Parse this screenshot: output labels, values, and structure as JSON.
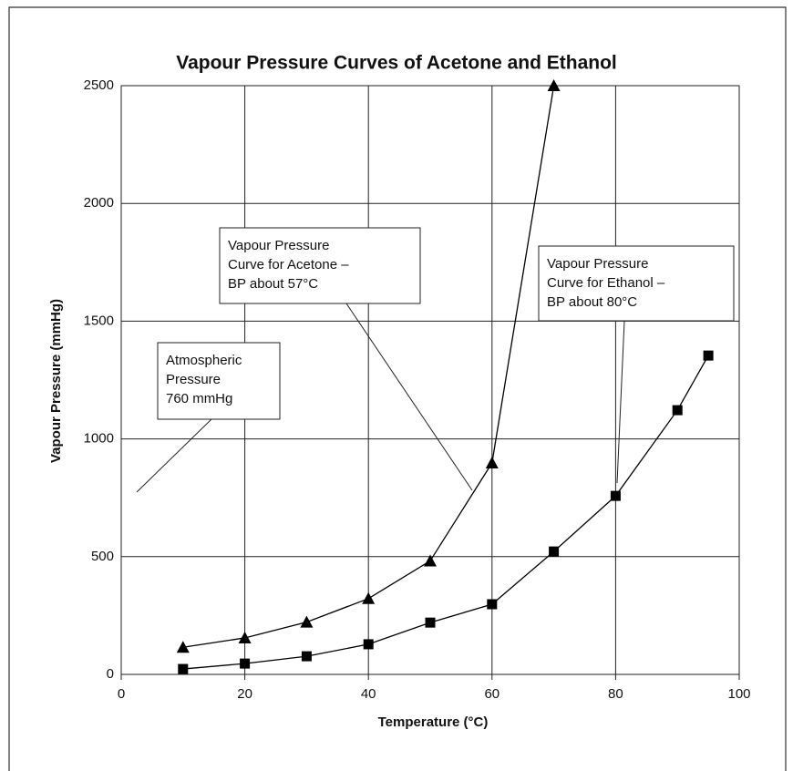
{
  "chart_data": {
    "type": "line",
    "title": "Vapour Pressure Curves of Acetone and Ethanol",
    "xlabel": "Temperature (°C)",
    "ylabel": "Vapour Pressure (mmHg)",
    "series": [
      {
        "name": "Acetone",
        "color": "#000000",
        "marker": "triangle",
        "x": [
          10,
          20,
          30,
          40,
          50,
          60,
          70
        ],
        "values": [
          115,
          155,
          222,
          322,
          482,
          898,
          2500
        ]
      },
      {
        "name": "Ethanol",
        "color": "#000000",
        "marker": "square",
        "x": [
          10,
          20,
          30,
          40,
          50,
          60,
          70,
          80,
          90,
          95
        ],
        "values": [
          23,
          46,
          77,
          128,
          220,
          298,
          522,
          758,
          1122,
          1354
        ]
      }
    ],
    "xlim": [
      0,
      100
    ],
    "xticks": [
      0,
      20,
      40,
      60,
      80,
      100
    ],
    "ylim": [
      0,
      2500
    ],
    "yticks": [
      0,
      500,
      1000,
      1500,
      2000,
      2500
    ],
    "grid": true,
    "annotations": [
      {
        "lines": [
          "Vapour Pressure",
          "Curve for Acetone –",
          "BP about 57°C"
        ]
      },
      {
        "lines": [
          "Vapour Pressure",
          "Curve for Ethanol –",
          "BP about 80°C"
        ]
      },
      {
        "lines": [
          "Atmospheric",
          "Pressure",
          "760 mmHg"
        ]
      }
    ]
  }
}
